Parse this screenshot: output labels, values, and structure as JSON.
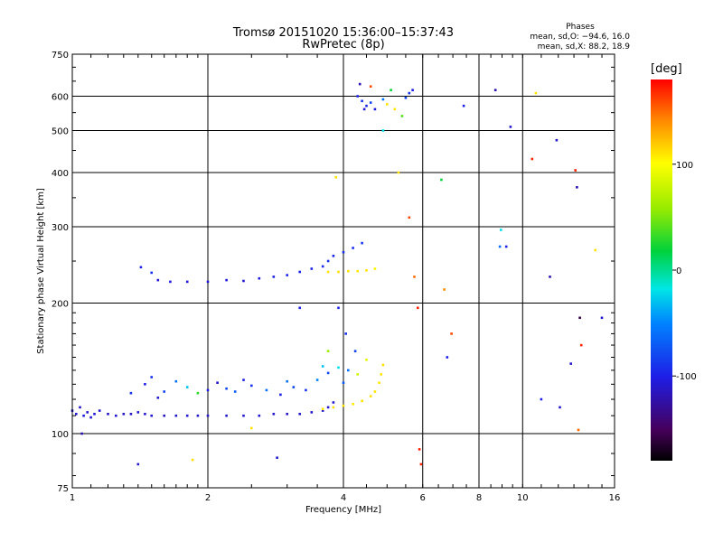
{
  "chart_data": {
    "type": "scatter",
    "title": "Tromsø 20151020 15:36:00–15:37:43",
    "subtitle": "RwPretec (8p)",
    "xlabel": "Frequency [MHz]",
    "ylabel": "Stationary phase Virtual Height [km]",
    "xscale": "log",
    "yscale": "log",
    "xlim": [
      1,
      16
    ],
    "ylim": [
      75,
      750
    ],
    "xticks": [
      1,
      2,
      4,
      6,
      8,
      10,
      16
    ],
    "yticks": [
      75,
      100,
      200,
      300,
      400,
      500,
      600,
      750
    ],
    "grid": true,
    "info": {
      "title": "Phases",
      "line1": "mean, sd,O: −94.6, 16.0",
      "line2": "mean, sd,X:  88.2, 18.9"
    },
    "colorbar": {
      "label": "[deg]",
      "range": [
        -180,
        180
      ],
      "ticks": [
        100,
        0,
        -100
      ]
    },
    "series": [
      {
        "note": "lower_trace_O",
        "points": [
          [
            1.0,
            113,
            -110
          ],
          [
            1.02,
            111,
            -108
          ],
          [
            1.04,
            115,
            -112
          ],
          [
            1.06,
            110,
            -105
          ],
          [
            1.08,
            112,
            -110
          ],
          [
            1.1,
            109,
            -108
          ],
          [
            1.12,
            111,
            -106
          ],
          [
            1.15,
            113,
            -110
          ],
          [
            1.2,
            111,
            -112
          ],
          [
            1.25,
            110,
            -108
          ],
          [
            1.3,
            111,
            -110
          ],
          [
            1.35,
            111,
            -112
          ],
          [
            1.4,
            112,
            -110
          ],
          [
            1.45,
            111,
            -108
          ],
          [
            1.5,
            110,
            -110
          ],
          [
            1.6,
            110,
            -112
          ],
          [
            1.7,
            110,
            -110
          ],
          [
            1.8,
            110,
            -108
          ],
          [
            1.9,
            110,
            -110
          ],
          [
            2.0,
            110,
            -112
          ],
          [
            2.2,
            110,
            -110
          ],
          [
            2.4,
            110,
            -108
          ],
          [
            2.6,
            110,
            -110
          ],
          [
            2.8,
            111,
            -110
          ],
          [
            3.0,
            111,
            -112
          ],
          [
            3.2,
            111,
            -110
          ],
          [
            3.4,
            112,
            -108
          ],
          [
            3.6,
            113,
            -110
          ],
          [
            3.7,
            115,
            -110
          ],
          [
            3.8,
            118,
            -108
          ]
        ]
      },
      {
        "note": "lower_trace_X",
        "points": [
          [
            3.6,
            114,
            110
          ],
          [
            3.8,
            115,
            112
          ],
          [
            4.0,
            116,
            110
          ],
          [
            4.2,
            117,
            108
          ],
          [
            4.4,
            119,
            110
          ],
          [
            4.6,
            122,
            112
          ],
          [
            4.7,
            125,
            110
          ],
          [
            4.8,
            131,
            108
          ],
          [
            4.85,
            137,
            110
          ],
          [
            4.9,
            144,
            112
          ]
        ]
      },
      {
        "note": "scatter_120_140",
        "points": [
          [
            1.45,
            130,
            -100
          ],
          [
            1.5,
            135,
            -90
          ],
          [
            1.6,
            125,
            -80
          ],
          [
            1.7,
            132,
            -60
          ],
          [
            1.8,
            128,
            -30
          ],
          [
            1.9,
            124,
            30
          ],
          [
            2.0,
            126,
            -100
          ],
          [
            2.1,
            131,
            -110
          ],
          [
            2.2,
            127,
            -80
          ],
          [
            2.3,
            125,
            -70
          ],
          [
            2.5,
            129,
            -90
          ],
          [
            2.7,
            126,
            -60
          ],
          [
            2.9,
            123,
            -100
          ],
          [
            3.1,
            128,
            -80
          ],
          [
            3.3,
            126,
            -90
          ],
          [
            3.5,
            133,
            -50
          ],
          [
            3.7,
            138,
            -80
          ],
          [
            3.9,
            142,
            -20
          ],
          [
            4.1,
            140,
            -60
          ],
          [
            4.3,
            137,
            80
          ],
          [
            4.5,
            148,
            90
          ],
          [
            1.35,
            124,
            -90
          ],
          [
            1.55,
            121,
            -110
          ],
          [
            2.4,
            133,
            -100
          ],
          [
            3.0,
            132,
            -60
          ],
          [
            3.6,
            143,
            -30
          ],
          [
            4.0,
            131,
            -70
          ],
          [
            4.25,
            155,
            -80
          ],
          [
            4.05,
            170,
            -90
          ]
        ]
      },
      {
        "note": "F_trace_O",
        "points": [
          [
            1.42,
            242,
            -100
          ],
          [
            1.5,
            235,
            -90
          ],
          [
            1.55,
            226,
            -110
          ],
          [
            1.65,
            224,
            -105
          ],
          [
            1.8,
            224,
            -108
          ],
          [
            2.0,
            224,
            -110
          ],
          [
            2.2,
            226,
            -106
          ],
          [
            2.4,
            225,
            -108
          ],
          [
            2.6,
            228,
            -104
          ],
          [
            2.8,
            230,
            -100
          ],
          [
            3.0,
            232,
            -96
          ],
          [
            3.2,
            236,
            -98
          ],
          [
            3.4,
            240,
            -100
          ],
          [
            3.6,
            243,
            -94
          ],
          [
            3.7,
            250,
            -90
          ],
          [
            3.8,
            257,
            -95
          ],
          [
            4.0,
            262,
            -92
          ],
          [
            4.2,
            268,
            -90
          ],
          [
            4.4,
            275,
            -88
          ]
        ]
      },
      {
        "note": "F_trace_X",
        "points": [
          [
            3.7,
            236,
            110
          ],
          [
            3.9,
            236,
            112
          ],
          [
            4.1,
            237,
            110
          ],
          [
            4.3,
            237,
            108
          ],
          [
            4.5,
            238,
            110
          ],
          [
            4.7,
            240,
            105
          ]
        ]
      },
      {
        "note": "top_cluster",
        "points": [
          [
            4.3,
            600,
            -100
          ],
          [
            4.4,
            585,
            -90
          ],
          [
            4.45,
            560,
            -110
          ],
          [
            4.5,
            570,
            -95
          ],
          [
            4.6,
            580,
            -80
          ],
          [
            4.7,
            560,
            -105
          ],
          [
            4.9,
            590,
            -60
          ],
          [
            5.0,
            575,
            110
          ],
          [
            5.2,
            560,
            110
          ],
          [
            5.4,
            540,
            40
          ],
          [
            5.5,
            595,
            -80
          ],
          [
            5.6,
            610,
            -90
          ],
          [
            5.7,
            620,
            -100
          ],
          [
            4.35,
            640,
            -120
          ],
          [
            4.6,
            632,
            160
          ],
          [
            5.1,
            620,
            20
          ]
        ]
      },
      {
        "note": "sparse_points",
        "points": [
          [
            1.05,
            100,
            -120
          ],
          [
            1.4,
            85,
            -110
          ],
          [
            1.85,
            87,
            110
          ],
          [
            2.5,
            103,
            110
          ],
          [
            2.85,
            88,
            -110
          ],
          [
            3.2,
            195,
            -100
          ],
          [
            3.7,
            155,
            60
          ],
          [
            3.85,
            390,
            110
          ],
          [
            3.9,
            195,
            -100
          ],
          [
            4.9,
            500,
            -20
          ],
          [
            5.3,
            400,
            110
          ],
          [
            5.6,
            315,
            160
          ],
          [
            5.75,
            230,
            150
          ],
          [
            5.85,
            195,
            170
          ],
          [
            5.9,
            92,
            170
          ],
          [
            5.95,
            85,
            170
          ],
          [
            6.6,
            385,
            20
          ],
          [
            6.7,
            215,
            140
          ],
          [
            6.8,
            150,
            -100
          ],
          [
            6.95,
            170,
            160
          ],
          [
            7.4,
            570,
            -100
          ],
          [
            8.7,
            620,
            -120
          ],
          [
            8.9,
            270,
            -60
          ],
          [
            8.95,
            295,
            -20
          ],
          [
            9.2,
            270,
            -100
          ],
          [
            9.4,
            510,
            -110
          ],
          [
            10.7,
            610,
            110
          ],
          [
            11.0,
            120,
            -100
          ],
          [
            11.5,
            230,
            -120
          ],
          [
            11.9,
            475,
            -110
          ],
          [
            12.1,
            115,
            -110
          ],
          [
            13.1,
            405,
            170
          ],
          [
            13.2,
            370,
            -120
          ],
          [
            13.3,
            102,
            150
          ],
          [
            14.5,
            265,
            110
          ],
          [
            15.0,
            185,
            -110
          ],
          [
            13.5,
            160,
            170
          ],
          [
            13.4,
            185,
            -160
          ],
          [
            10.5,
            430,
            170
          ],
          [
            12.8,
            145,
            -110
          ]
        ]
      }
    ]
  }
}
